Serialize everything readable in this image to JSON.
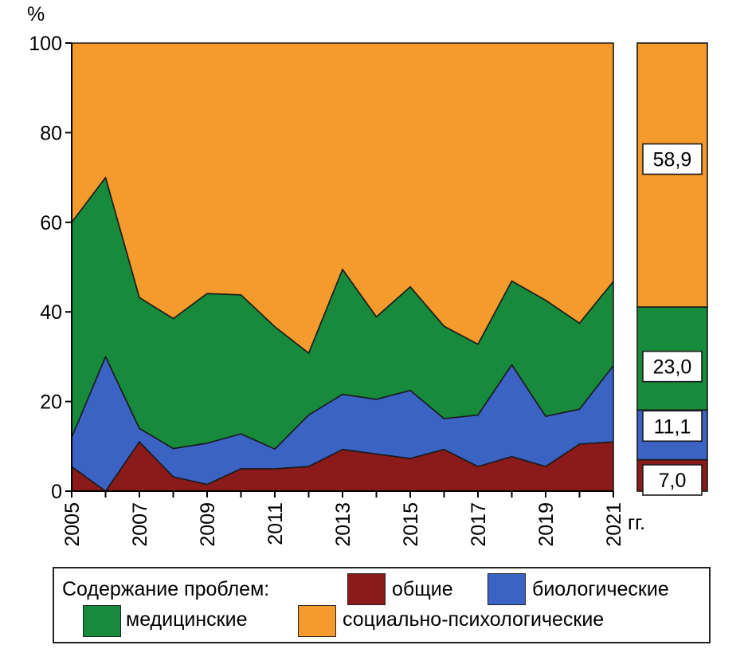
{
  "chart_data": {
    "type": "area",
    "stacked": true,
    "x": [
      2005,
      2006,
      2007,
      2008,
      2009,
      2010,
      2011,
      2012,
      2013,
      2014,
      2015,
      2016,
      2017,
      2018,
      2019,
      2020,
      2021
    ],
    "x_tick_labels": [
      "2005",
      "2007",
      "2009",
      "2011",
      "2013",
      "2015",
      "2017",
      "2019",
      "2021"
    ],
    "x_unit": "гг.",
    "y_unit": "%",
    "ylim": [
      0,
      100
    ],
    "y_ticks": [
      0,
      20,
      40,
      60,
      80,
      100
    ],
    "grid": false,
    "series": [
      {
        "key": "general",
        "color": "#8b1a1a",
        "values": [
          5.5,
          0,
          11,
          3.2,
          1.5,
          5,
          5,
          5.5,
          9.3,
          8.3,
          7.3,
          9.3,
          5.5,
          7.7,
          5.5,
          10.5,
          11
        ]
      },
      {
        "key": "biological",
        "color": "#3a63c4",
        "values": [
          6.5,
          30,
          3,
          6.3,
          9.2,
          7.8,
          4.4,
          11.5,
          12.3,
          12.2,
          15.2,
          6.9,
          11.5,
          20.5,
          11.2,
          7.8,
          17
        ]
      },
      {
        "key": "medical",
        "color": "#178a3c",
        "values": [
          48,
          40,
          29.2,
          29,
          33.4,
          31,
          27.3,
          13.8,
          27.9,
          18.4,
          23.1,
          20.6,
          15.8,
          18.7,
          25.9,
          19.2,
          18.8
        ]
      },
      {
        "key": "social",
        "color": "#f59a2c",
        "values": [
          40,
          30,
          56.8,
          61.5,
          55.9,
          56.2,
          63.3,
          69.2,
          50.5,
          61.1,
          54.4,
          63.2,
          67.2,
          53.1,
          57.4,
          62.5,
          53.2
        ]
      }
    ],
    "summary_bar": [
      {
        "key": "general",
        "value": 7.0,
        "label": "7,0"
      },
      {
        "key": "biological",
        "value": 11.1,
        "label": "11,1"
      },
      {
        "key": "medical",
        "value": 23.0,
        "label": "23,0"
      },
      {
        "key": "social",
        "value": 58.9,
        "label": "58,9"
      }
    ]
  },
  "legend": {
    "title": "Содержание проблем:",
    "items": {
      "general": "общие",
      "biological": "биологические",
      "medical": "медицинские",
      "social": "социально-психологические"
    }
  }
}
